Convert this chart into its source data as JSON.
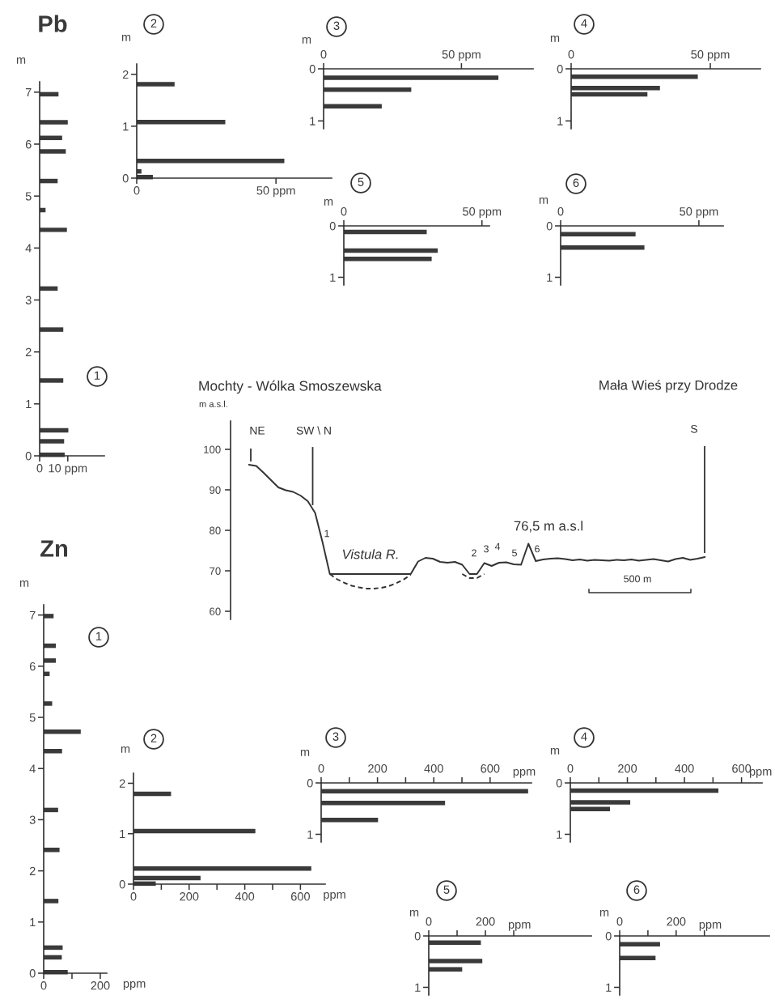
{
  "chart_data": [
    {
      "type": "bar",
      "orientation": "horizontal",
      "title": "1",
      "ylabel": "m",
      "annotations": [
        "Pb"
      ],
      "color": "#3a3a3a",
      "x": [
        6.96,
        6.42,
        6.12,
        5.86,
        5.29,
        4.73,
        4.35,
        3.22,
        2.43,
        1.45,
        0.49,
        0.28,
        0.02
      ],
      "values": [
        6.7,
        10,
        8,
        9.3,
        6.4,
        2.1,
        9.7,
        6.4,
        8.4,
        8.4,
        10.2,
        8.7,
        8.9
      ],
      "xlim": [
        0,
        23
      ],
      "xticks": [
        0,
        {
          "value": 10,
          "label": "10 ppm"
        }
      ],
      "ylim": [
        0,
        7.2
      ],
      "yticks": [
        0,
        1,
        2,
        3,
        4,
        5,
        6,
        7
      ]
    },
    {
      "type": "bar",
      "orientation": "horizontal",
      "title": "2",
      "ylabel": "m",
      "color": "#3a3a3a",
      "x": [
        1.81,
        1.08,
        0.33,
        0.13,
        0.02
      ],
      "values": [
        13.6,
        31.8,
        53,
        1.7,
        5.8
      ],
      "xlim": [
        0,
        70
      ],
      "xticks": [
        0,
        {
          "value": 50,
          "label": "50 ppm"
        }
      ],
      "ylim": [
        0,
        2.2
      ],
      "yticks": [
        0,
        1,
        2
      ]
    },
    {
      "type": "bar",
      "orientation": "horizontal",
      "title": "3",
      "ylabel": "m",
      "color": "#3a3a3a",
      "x": [
        0.17,
        0.4,
        0.72
      ],
      "values": [
        63.4,
        31.8,
        21.1
      ],
      "xlim": [
        0,
        76
      ],
      "xticks": [
        0,
        {
          "value": 50,
          "label": "50 ppm"
        }
      ],
      "ylim": [
        1.15,
        0
      ],
      "yticks": [
        0,
        1
      ]
    },
    {
      "type": "bar",
      "orientation": "horizontal",
      "title": "5",
      "ylabel": "m",
      "color": "#3a3a3a",
      "x": [
        0.12,
        0.48,
        0.64
      ],
      "values": [
        30,
        34,
        31.8
      ],
      "xlim": [
        0,
        52.7
      ],
      "xticks": [
        0,
        {
          "value": 50,
          "label": "50 ppm"
        }
      ],
      "ylim": [
        1.15,
        0
      ],
      "yticks": [
        0,
        1
      ]
    },
    {
      "type": "bar",
      "orientation": "horizontal",
      "title": "4",
      "ylabel": "m",
      "color": "#3a3a3a",
      "x": [
        0.15,
        0.37,
        0.49
      ],
      "values": [
        45.5,
        31.9,
        27.4
      ],
      "xlim": [
        0,
        68
      ],
      "xticks": [
        0,
        {
          "value": 50,
          "label": "50 ppm"
        }
      ],
      "ylim": [
        1.15,
        0
      ],
      "yticks": [
        0,
        1
      ]
    },
    {
      "type": "bar",
      "orientation": "horizontal",
      "title": "6",
      "ylabel": "m",
      "color": "#3a3a3a",
      "x": [
        0.16,
        0.42
      ],
      "values": [
        27.1,
        30.3
      ],
      "xlim": [
        0,
        58.8
      ],
      "xticks": [
        0,
        {
          "value": 50,
          "label": "50 ppm"
        }
      ],
      "ylim": [
        1.15,
        0
      ],
      "yticks": [
        0,
        1
      ]
    },
    {
      "type": "line",
      "title": "Mochty - Wólka Smoszewska",
      "ylabel": "m a.s.l.",
      "tick_labels": "y",
      "categories": [
        null,
        null,
        null,
        null,
        null,
        null,
        null,
        null,
        null,
        null,
        null,
        null,
        null,
        null,
        null,
        null,
        null,
        null,
        null,
        null,
        null,
        null,
        null,
        null,
        null,
        null,
        null,
        null,
        null,
        null,
        null,
        null,
        null,
        null,
        null,
        null,
        null,
        null,
        null,
        null,
        null,
        null,
        null,
        null,
        null,
        null,
        null,
        null,
        null,
        null,
        null,
        null,
        null,
        null,
        null,
        null,
        null,
        null,
        null,
        null,
        null,
        null,
        null
      ],
      "series": [
        {
          "color": "#333333",
          "line_style": "solid",
          "values": [
            96.2,
            95.9,
            94.2,
            92.4,
            90.6,
            89.9,
            89.5,
            88.6,
            87.2,
            84.3,
            77.1,
            69.2,
            69.2,
            69.2,
            69.2,
            69.2,
            69.2,
            69.2,
            69.2,
            69.2,
            69.2,
            69.2,
            69.2,
            72.3,
            73.2,
            73.0,
            72.2,
            72.0,
            72.2,
            71.5,
            69.2,
            69.2,
            71.9,
            71.2,
            72.0,
            72.1,
            71.6,
            71.5,
            76.7,
            72.4,
            72.8,
            73.0,
            73.1,
            72.9,
            72.6,
            72.8,
            72.5,
            72.7,
            72.6,
            72.5,
            72.7,
            72.6,
            72.8,
            72.5,
            72.7,
            72.9,
            72.6,
            72.3,
            72.9,
            73.2,
            72.7,
            73.0,
            73.4
          ]
        },
        {
          "color": "#333333",
          "line_style": "dashed",
          "values": [
            null,
            null,
            null,
            null,
            null,
            null,
            null,
            null,
            null,
            null,
            null,
            69.2,
            67.9,
            67.0,
            66.3,
            65.9,
            65.6,
            65.6,
            65.8,
            66.2,
            66.9,
            67.8,
            69.0,
            null,
            null,
            null,
            null,
            null,
            null,
            69.2,
            68.2,
            68.2,
            69.2,
            null,
            null,
            null,
            null,
            null,
            null,
            null,
            null,
            null,
            null,
            null,
            null,
            null,
            null,
            null,
            null,
            null,
            null,
            null,
            null,
            null,
            null,
            null,
            null,
            null,
            null,
            null,
            null,
            null,
            null
          ]
        }
      ],
      "ylim": [
        58,
        107
      ],
      "yticks": [
        60,
        70,
        80,
        90,
        100
      ],
      "annotations": [
        "NE",
        "SW \\ N",
        "S",
        "1",
        "2",
        "3",
        "4",
        "5",
        "6",
        "Vistula R.",
        "76,5 m a.s.l",
        "500 m",
        "Mała Wieś przy Drodze"
      ]
    },
    {
      "type": "bar",
      "orientation": "horizontal",
      "title": "1",
      "ylabel": "m",
      "xlabel": "ppm",
      "annotations": [
        "Zn"
      ],
      "color": "#3a3a3a",
      "x": [
        6.98,
        6.4,
        6.11,
        5.85,
        5.27,
        4.72,
        4.34,
        3.19,
        2.41,
        1.41,
        0.5,
        0.31,
        0.02
      ],
      "values": [
        35,
        43,
        43,
        21,
        30,
        131,
        65,
        51,
        56,
        52,
        67,
        64,
        85
      ],
      "xlim": [
        0,
        223
      ],
      "xticks": [
        0,
        {
          "value": 100,
          "label": null
        },
        200
      ],
      "ylim": [
        0,
        7.2
      ],
      "yticks": [
        0,
        1,
        2,
        3,
        4,
        5,
        6,
        7
      ]
    },
    {
      "type": "bar",
      "orientation": "horizontal",
      "title": "2",
      "ylabel": "m",
      "xlabel": "ppm",
      "color": "#3a3a3a",
      "x": [
        1.79,
        1.05,
        0.31,
        0.12,
        0.01
      ],
      "values": [
        135,
        438,
        639,
        241,
        80
      ],
      "xlim": [
        0,
        689
      ],
      "xticks": [
        0,
        {
          "value": 100,
          "label": null
        },
        200,
        {
          "value": 300,
          "label": null
        },
        400,
        {
          "value": 500,
          "label": null
        },
        600
      ],
      "ylim": [
        0,
        2.2
      ],
      "yticks": [
        0,
        1,
        2
      ]
    },
    {
      "type": "bar",
      "orientation": "horizontal",
      "title": "3",
      "ylabel": "m",
      "xlabel": "ppm",
      "color": "#3a3a3a",
      "x": [
        0.16,
        0.39,
        0.72
      ],
      "values": [
        735,
        440,
        202
      ],
      "xlim": [
        0,
        747
      ],
      "xticks": [
        0,
        {
          "value": 100,
          "label": null
        },
        200,
        {
          "value": 300,
          "label": null
        },
        400,
        {
          "value": 500,
          "label": null
        },
        600
      ],
      "ylim": [
        1.15,
        0
      ],
      "yticks": [
        0,
        1
      ]
    },
    {
      "type": "bar",
      "orientation": "horizontal",
      "title": "5",
      "ylabel": "m",
      "xlabel": "ppm",
      "color": "#3a3a3a",
      "x": [
        0.13,
        0.49,
        0.65
      ],
      "values": [
        184,
        189,
        118
      ],
      "xlim": [
        0,
        574
      ],
      "xticks": [
        0,
        {
          "value": 100,
          "label": null
        },
        200,
        {
          "value": 300,
          "label": null
        }
      ],
      "ylim": [
        1.15,
        0
      ],
      "yticks": [
        0,
        1
      ]
    },
    {
      "type": "bar",
      "orientation": "horizontal",
      "title": "4",
      "ylabel": "m",
      "xlabel": "ppm",
      "color": "#3a3a3a",
      "x": [
        0.15,
        0.38,
        0.51
      ],
      "values": [
        519,
        210,
        139
      ],
      "xlim": [
        0,
        672
      ],
      "xticks": [
        0,
        {
          "value": 100,
          "label": null
        },
        200,
        {
          "value": 300,
          "label": null
        },
        400,
        {
          "value": 500,
          "label": null
        },
        600
      ],
      "ylim": [
        1.15,
        0
      ],
      "yticks": [
        0,
        1
      ]
    },
    {
      "type": "bar",
      "orientation": "horizontal",
      "title": "6",
      "ylabel": "m",
      "xlabel": "ppm",
      "color": "#3a3a3a",
      "x": [
        0.16,
        0.43
      ],
      "values": [
        143,
        127
      ],
      "xlim": [
        0,
        530
      ],
      "xticks": [
        0,
        {
          "value": 100,
          "label": null
        },
        200,
        {
          "value": 300,
          "label": null
        }
      ],
      "ylim": [
        1.15,
        0
      ],
      "yticks": [
        0,
        1
      ]
    }
  ]
}
